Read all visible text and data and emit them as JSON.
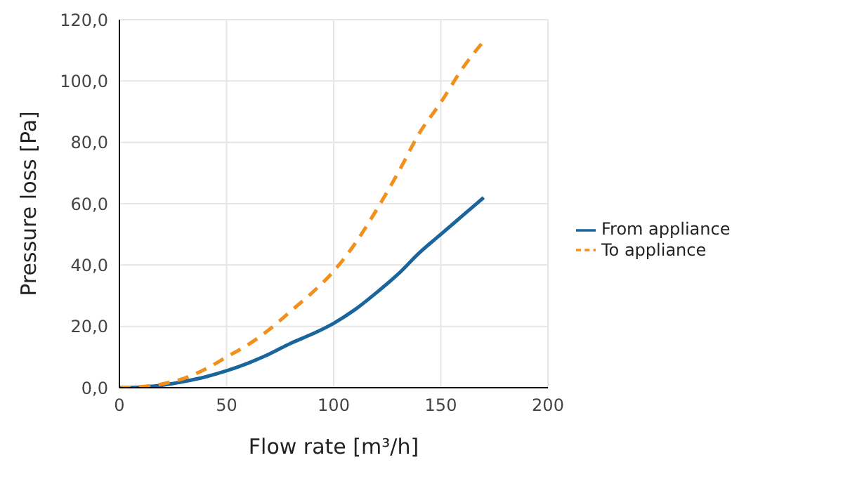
{
  "chart_data": {
    "type": "line",
    "xlabel": "Flow rate [m³/h]",
    "ylabel": "Pressure loss [Pa]",
    "x": [
      0,
      10,
      20,
      30,
      40,
      50,
      60,
      70,
      80,
      90,
      100,
      110,
      120,
      130,
      140,
      150,
      160,
      170
    ],
    "series": [
      {
        "name": "From appliance",
        "color": "#1a669c",
        "line_style": "solid",
        "values": [
          0,
          0.2,
          0.8,
          2,
          3.5,
          5.5,
          8,
          11,
          14.5,
          17.5,
          21,
          25.5,
          31,
          37,
          44,
          50,
          56,
          62
        ]
      },
      {
        "name": "To appliance",
        "color": "#f2901e",
        "line_style": "dashed",
        "values": [
          0,
          0.3,
          1.2,
          3,
          6,
          10,
          14,
          19,
          25,
          31,
          38,
          47,
          58,
          70,
          83,
          93,
          104,
          113
        ]
      }
    ],
    "xlim": [
      0,
      200
    ],
    "xticks": [
      0,
      50,
      100,
      150,
      200
    ],
    "ylim": [
      0,
      120
    ],
    "yticks": [
      {
        "value": 0,
        "label": "0,0"
      },
      {
        "value": 20,
        "label": "20,0"
      },
      {
        "value": 40,
        "label": "40,0"
      },
      {
        "value": 60,
        "label": "60,0"
      },
      {
        "value": 80,
        "label": "80,0"
      },
      {
        "value": 100,
        "label": "100,0"
      },
      {
        "value": 120,
        "label": "120,0"
      }
    ],
    "grid": true,
    "legend": "right",
    "marker": "none"
  }
}
